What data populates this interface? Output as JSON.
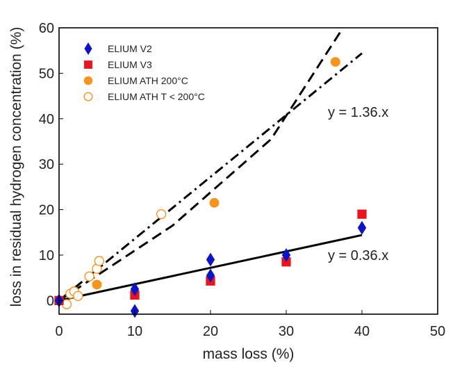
{
  "chart_data": {
    "type": "scatter",
    "title": "",
    "xlabel": "mass loss (%)",
    "ylabel": "loss in residual hydrogen concentration (%)",
    "xlim": [
      0,
      50
    ],
    "ylim": [
      -3,
      60
    ],
    "xticks": [
      0,
      10,
      20,
      30,
      40,
      50
    ],
    "yticks": [
      0,
      10,
      20,
      30,
      40,
      50,
      60
    ],
    "grid": false,
    "legend": "top-left",
    "series": [
      {
        "name": "ELIUM V2",
        "marker": "diamond",
        "color": "#0a14c8",
        "filled": true,
        "points": [
          [
            0,
            0
          ],
          [
            10,
            2.5
          ],
          [
            10,
            -2.3
          ],
          [
            20,
            9
          ],
          [
            20,
            5.5
          ],
          [
            30,
            10
          ],
          [
            40,
            16
          ]
        ]
      },
      {
        "name": "ELIUM V3",
        "marker": "square",
        "color": "#e8141e",
        "filled": true,
        "points": [
          [
            0,
            0
          ],
          [
            10,
            1.2
          ],
          [
            20,
            4.3
          ],
          [
            30,
            8.5
          ],
          [
            40,
            19
          ]
        ]
      },
      {
        "name": "ELIUM ATH 200°C",
        "marker": "circle",
        "color": "#f7941d",
        "filled": true,
        "points": [
          [
            0,
            0
          ],
          [
            5,
            3.5
          ],
          [
            20.5,
            21.5
          ],
          [
            36.5,
            52.5
          ]
        ]
      },
      {
        "name": "ELIUM ATH T < 200°C",
        "marker": "circle",
        "color": "#f7941d",
        "filled": false,
        "points": [
          [
            1,
            -0.8
          ],
          [
            1.5,
            1.5
          ],
          [
            2,
            2
          ],
          [
            2.5,
            1
          ],
          [
            4,
            5.3
          ],
          [
            5,
            7
          ],
          [
            5.3,
            8.7
          ],
          [
            13.5,
            19
          ]
        ]
      }
    ],
    "lines": [
      {
        "style": "solid",
        "color": "#000000",
        "points": [
          [
            0,
            0
          ],
          [
            40,
            14.4
          ]
        ]
      },
      {
        "style": "dashdot",
        "color": "#000000",
        "points": [
          [
            0,
            0
          ],
          [
            40,
            54.4
          ]
        ]
      },
      {
        "style": "dashed",
        "color": "#000000",
        "points": [
          [
            0,
            0
          ],
          [
            15,
            16.5
          ],
          [
            28,
            35.5
          ],
          [
            37.5,
            60
          ]
        ]
      }
    ],
    "annotations": [
      {
        "text": "y = 1.36.x",
        "x": 35.5,
        "y": 41.5
      },
      {
        "text": "y = 0.36.x",
        "x": 35.5,
        "y": 10
      }
    ]
  }
}
